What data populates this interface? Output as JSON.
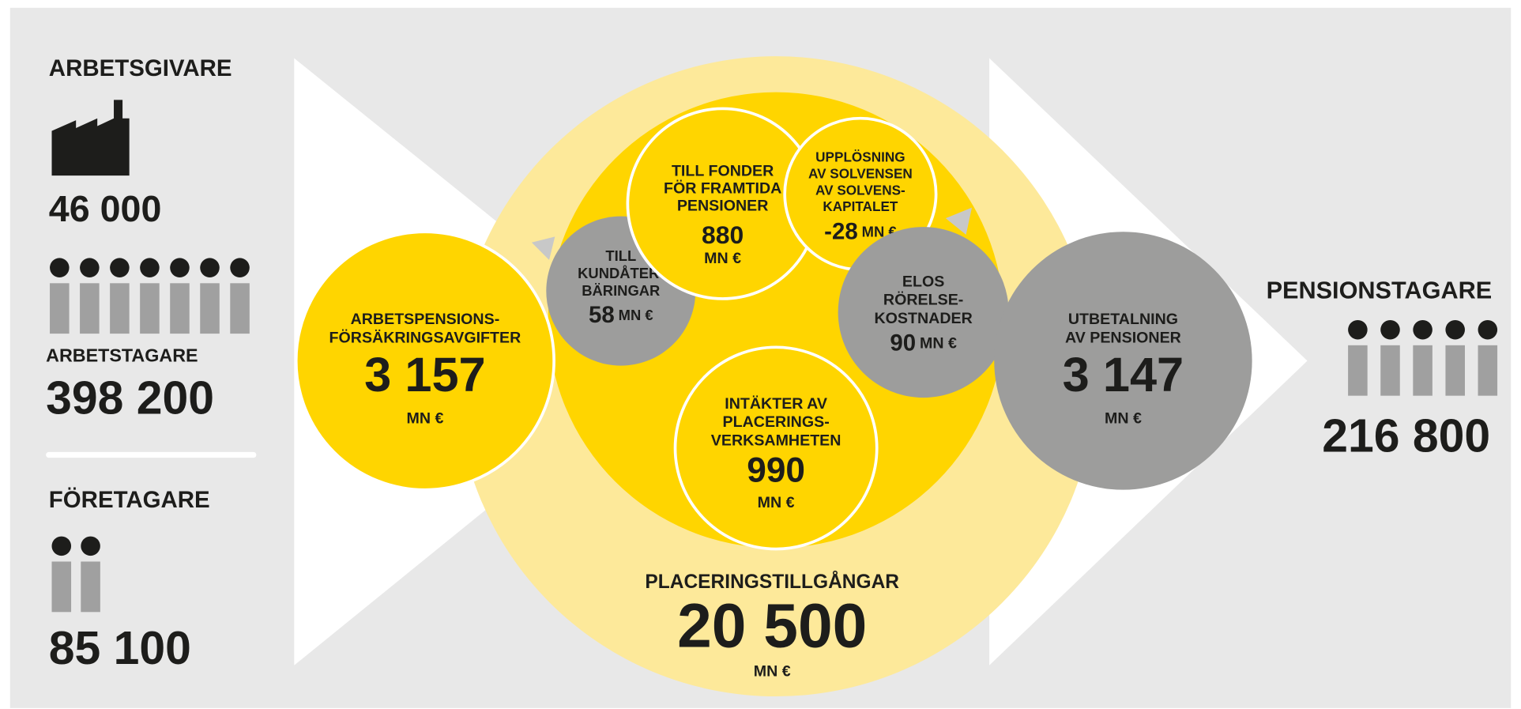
{
  "employers": {
    "title": "ARBETSGIVARE",
    "count": "46 000"
  },
  "employees": {
    "title": "ARBETSTAGARE",
    "count": "398 200"
  },
  "entrepreneurs": {
    "title": "FÖRETAGARE",
    "count": "85 100"
  },
  "pensioners": {
    "title": "PENSIONSTAGARE",
    "count": "216 800"
  },
  "flows": [
    {
      "label": [
        "ARBETSPENSIONS-",
        "FÖRSÄKRINGSAVGIFTER"
      ],
      "value": "3 157",
      "unit": "MN €"
    },
    {
      "label": [
        "TILL",
        "KUNDÅTER-",
        "BÄRINGAR"
      ],
      "value": "58",
      "unit": "MN €"
    },
    {
      "label": [
        "TILL FONDER",
        "FÖR FRAMTIDA",
        "PENSIONER"
      ],
      "value": "880",
      "unit": "MN €"
    },
    {
      "label": [
        "UPPLÖSNING",
        "AV SOLVENSEN",
        "AV SOLVENS-",
        "KAPITALET"
      ],
      "value": "-28",
      "unit": "MN €"
    },
    {
      "label": [
        "ELOS",
        "RÖRELSE-",
        "KOSTNADER"
      ],
      "value": "90",
      "unit": "MN €"
    },
    {
      "label": [
        "INTÄKTER AV",
        "PLACERINGS-",
        "VERKSAMHETEN"
      ],
      "value": "990",
      "unit": "MN €"
    },
    {
      "label": [
        "UTBETALNING",
        "AV PENSIONER"
      ],
      "value": "3 147",
      "unit": "MN €"
    },
    {
      "label": [
        "PLACERINGSTILLGÅNGAR"
      ],
      "value": "20 500",
      "unit": "MN €"
    }
  ]
}
